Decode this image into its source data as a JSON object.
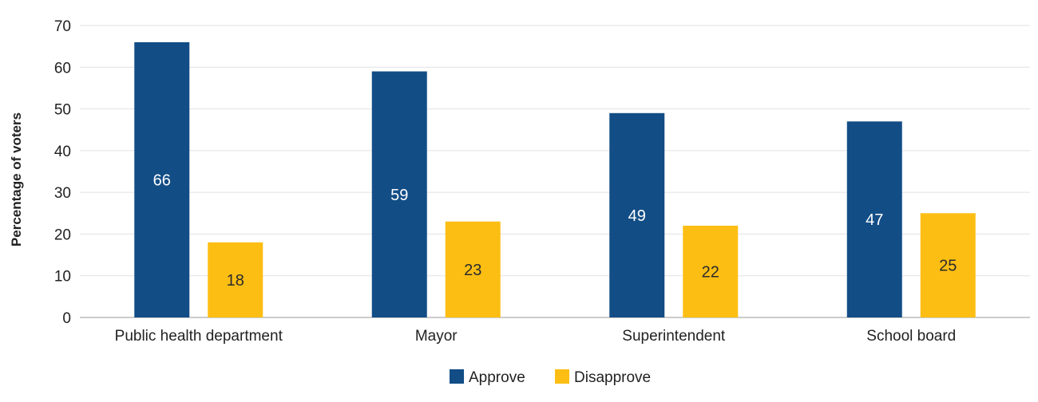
{
  "chart_data": {
    "type": "bar",
    "title": "",
    "xlabel": "",
    "ylabel": "Percentage of voters",
    "ylim": [
      0,
      70
    ],
    "yticks": [
      0,
      10,
      20,
      30,
      40,
      50,
      60,
      70
    ],
    "grid": true,
    "legend_position": "bottom-center",
    "categories": [
      "Public health department",
      "Mayor",
      "Superintendent",
      "School board"
    ],
    "series": [
      {
        "name": "Approve",
        "values": [
          66,
          59,
          49,
          47
        ],
        "color": "#124d86",
        "label_color": "#ffffff"
      },
      {
        "name": "Disapprove",
        "values": [
          18,
          23,
          22,
          25
        ],
        "color": "#fdbe14",
        "label_color": "#2b2b2b"
      }
    ]
  }
}
